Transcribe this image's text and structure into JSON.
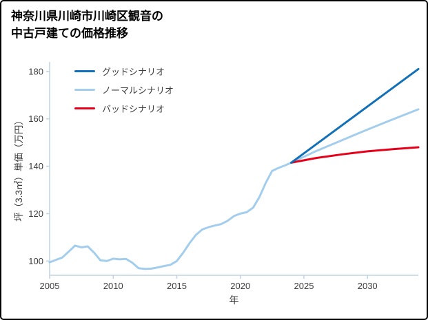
{
  "title": {
    "line1": "神奈川県川崎市川崎区観音の",
    "line2": "中古戸建ての価格推移"
  },
  "chart_data": {
    "type": "line",
    "title": "神奈川県川崎市川崎区観音の中古戸建ての価格推移",
    "xlabel": "年",
    "ylabel": "坪（3.3㎡）単価（万円）",
    "xlim": [
      2005,
      2034
    ],
    "ylim": [
      94,
      184
    ],
    "xticks": [
      2005,
      2010,
      2015,
      2020,
      2025,
      2030
    ],
    "yticks": [
      100,
      120,
      140,
      160,
      180
    ],
    "grid": false,
    "legend_position": "top-left",
    "axis_color": "#bdd3e4",
    "tick_label_color": "#3c3c3c",
    "series": [
      {
        "name": "グッドシナリオ",
        "color": "#1170b8",
        "width": 3,
        "z": 3,
        "x": [
          2024,
          2034
        ],
        "y": [
          141.5,
          181
        ]
      },
      {
        "name": "ノーマルシナリオ",
        "color": "#a3cdec",
        "width": 3,
        "z": 1,
        "x": [
          2005,
          2005.5,
          2006,
          2006.5,
          2007,
          2007.5,
          2008,
          2008.5,
          2009,
          2009.5,
          2010,
          2010.5,
          2011,
          2011.5,
          2012,
          2012.5,
          2013,
          2013.5,
          2014,
          2014.5,
          2015,
          2015.5,
          2016,
          2016.5,
          2017,
          2017.5,
          2018,
          2018.5,
          2019,
          2019.5,
          2020,
          2020.5,
          2021,
          2021.5,
          2022,
          2022.5,
          2023,
          2023.5,
          2024,
          2026,
          2028,
          2030,
          2032,
          2034
        ],
        "y": [
          99.5,
          100.5,
          101.5,
          104,
          106.5,
          105.8,
          106.2,
          103.5,
          100.3,
          100,
          101,
          100.7,
          100.9,
          99.3,
          97,
          96.7,
          96.8,
          97.3,
          97.9,
          98.4,
          100,
          103.5,
          107.5,
          111,
          113.3,
          114.3,
          115,
          115.6,
          117,
          119,
          120,
          120.6,
          122.5,
          127,
          133,
          138,
          139.3,
          140.3,
          141.5,
          146.5,
          151,
          155.5,
          159.8,
          164
        ]
      },
      {
        "name": "バッドシナリオ",
        "color": "#e60019",
        "width": 3,
        "z": 2,
        "x": [
          2024,
          2026,
          2028,
          2030,
          2032,
          2034
        ],
        "y": [
          141.5,
          143.5,
          145,
          146.3,
          147.2,
          148
        ]
      }
    ]
  }
}
